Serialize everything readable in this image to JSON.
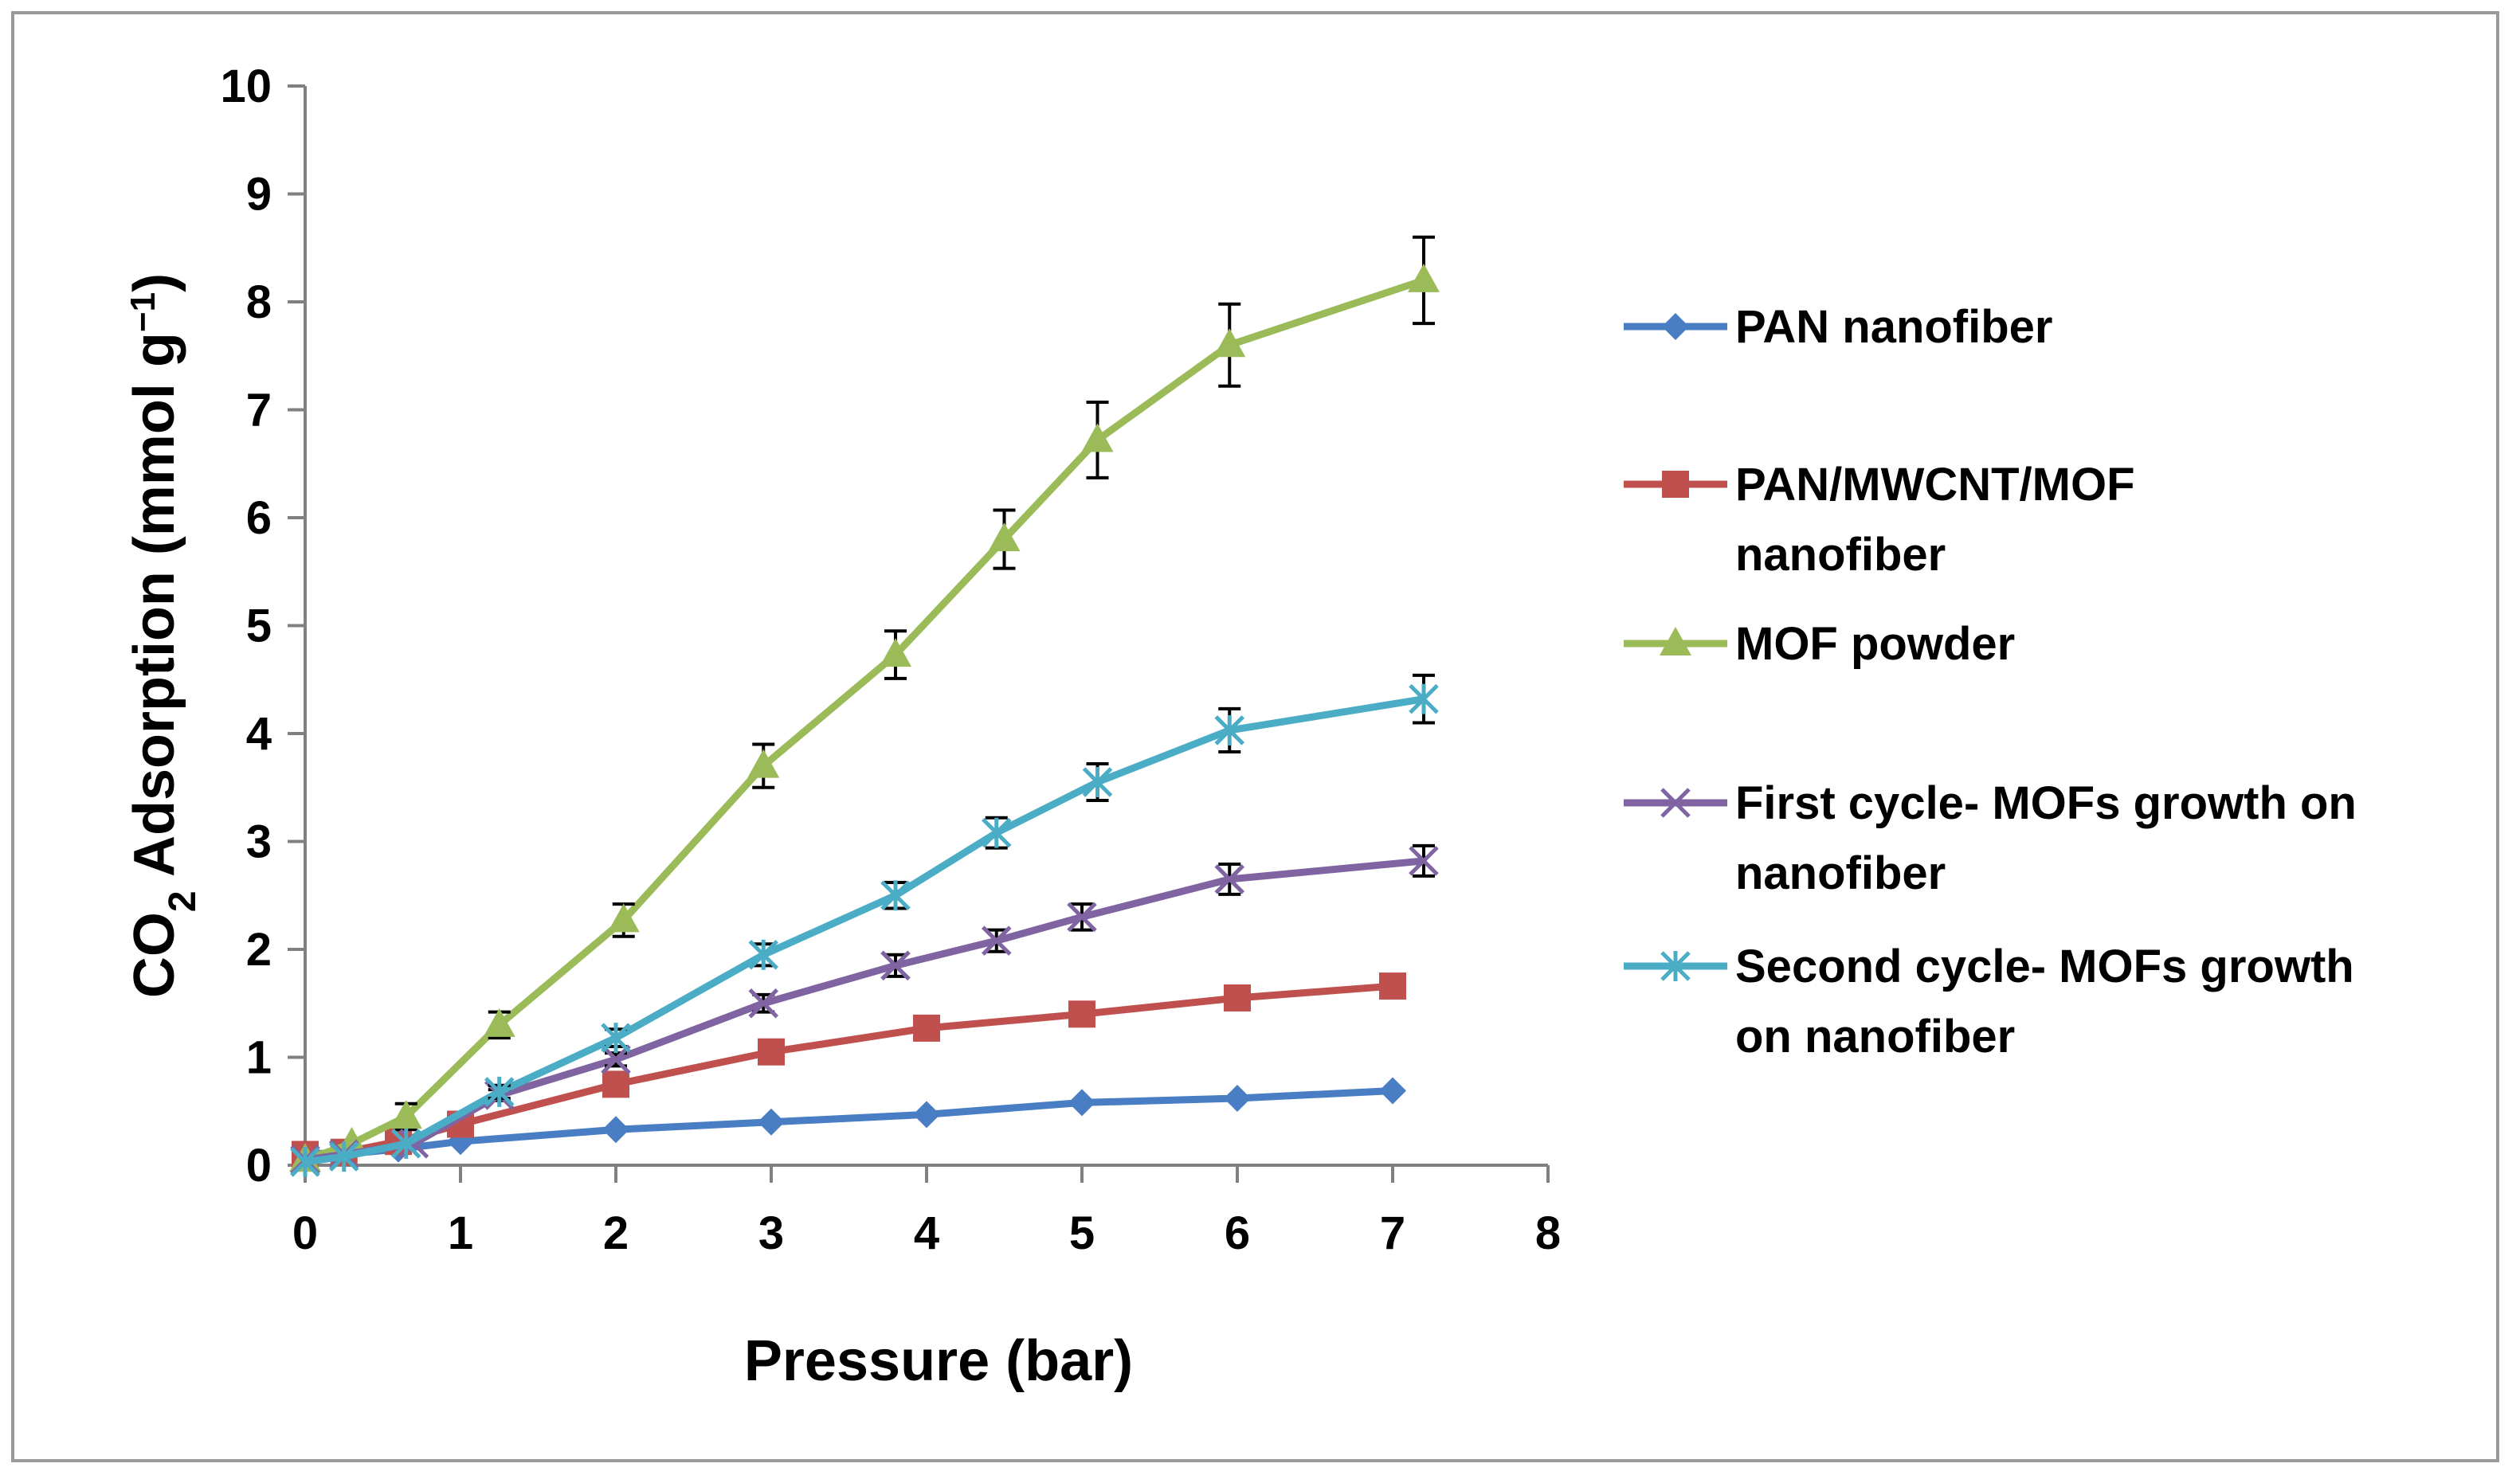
{
  "chart_data": {
    "type": "line",
    "title": "",
    "xlabel": "Pressure (bar)",
    "ylabel": {
      "prefix": "CO",
      "subscript": "2",
      "main": " Adsorption (mmol g",
      "superscript": "−1",
      "suffix": ")"
    },
    "xlim": [
      0,
      8
    ],
    "ylim": [
      0,
      10
    ],
    "xticks": [
      "0",
      "1",
      "2",
      "3",
      "4",
      "5",
      "6",
      "7",
      "8"
    ],
    "yticks": [
      "0",
      "1",
      "2",
      "3",
      "4",
      "5",
      "6",
      "7",
      "8",
      "9",
      "10"
    ],
    "grid": false,
    "legend_position": "right",
    "series": [
      {
        "name": "PAN nanofiber",
        "legend_lines": [
          "PAN nanofiber"
        ],
        "color": "#4a7ec4",
        "marker": "diamond",
        "x": [
          0,
          0.25,
          0.6,
          1.0,
          2.0,
          3.0,
          4.0,
          5.0,
          6.0,
          7.0
        ],
        "y": [
          0.05,
          0.1,
          0.15,
          0.22,
          0.33,
          0.4,
          0.47,
          0.58,
          0.62,
          0.69
        ],
        "err": [
          0,
          0,
          0,
          0,
          0,
          0,
          0,
          0,
          0,
          0
        ]
      },
      {
        "name": "PAN/MWCNT/MOF nanofiber",
        "legend_lines": [
          " PAN/MWCNT/MOF",
          "nanofiber"
        ],
        "color": "#c0504d",
        "marker": "square",
        "x": [
          0,
          0.25,
          0.6,
          1.0,
          2.0,
          3.0,
          4.0,
          5.0,
          6.0,
          7.0
        ],
        "y": [
          0.1,
          0.12,
          0.22,
          0.38,
          0.75,
          1.05,
          1.27,
          1.4,
          1.55,
          1.66
        ],
        "err": [
          0,
          0,
          0,
          0,
          0,
          0,
          0,
          0,
          0,
          0
        ]
      },
      {
        "name": "MOF powder",
        "legend_lines": [
          "MOF powder"
        ],
        "color": "#9bbb59",
        "marker": "triangle",
        "x": [
          0,
          0.3,
          0.65,
          1.25,
          2.05,
          2.95,
          3.8,
          4.5,
          5.1,
          5.95,
          7.2
        ],
        "y": [
          0.05,
          0.2,
          0.45,
          1.3,
          2.27,
          3.7,
          4.73,
          5.8,
          6.72,
          7.6,
          8.2
        ],
        "err": [
          0,
          0,
          0.12,
          0.12,
          0.15,
          0.2,
          0.22,
          0.27,
          0.35,
          0.38,
          0.4
        ]
      },
      {
        "name": "First cycle- MOFs growth on nanofiber",
        "legend_lines": [
          "First cycle- MOFs growth on",
          "nanofiber"
        ],
        "color": "#8064a2",
        "marker": "x",
        "x": [
          0,
          0.25,
          0.7,
          1.25,
          2.0,
          2.95,
          3.8,
          4.45,
          5.0,
          5.95,
          7.2
        ],
        "y": [
          0.05,
          0.1,
          0.2,
          0.65,
          0.98,
          1.5,
          1.85,
          2.08,
          2.3,
          2.65,
          2.82
        ],
        "err": [
          0,
          0,
          0,
          0.05,
          0.06,
          0.08,
          0.1,
          0.1,
          0.12,
          0.14,
          0.14
        ]
      },
      {
        "name": "Second cycle- MOFs growth on nanofiber",
        "legend_lines": [
          "Second cycle- MOFs growth",
          "on nanofiber"
        ],
        "color": "#4bacc6",
        "marker": "star",
        "x": [
          0,
          0.25,
          0.65,
          1.25,
          2.0,
          2.95,
          3.8,
          4.45,
          5.1,
          5.95,
          7.2
        ],
        "y": [
          0.03,
          0.08,
          0.2,
          0.68,
          1.18,
          1.95,
          2.5,
          3.08,
          3.55,
          4.03,
          4.32
        ],
        "err": [
          0,
          0,
          0,
          0.06,
          0.08,
          0.1,
          0.12,
          0.14,
          0.17,
          0.2,
          0.22
        ]
      }
    ]
  }
}
